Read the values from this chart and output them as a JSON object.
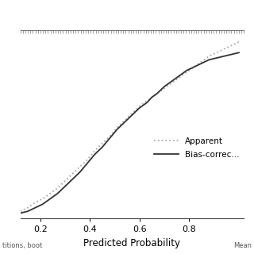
{
  "xlabel": "Predicted Probability",
  "xlim": [
    0.12,
    1.02
  ],
  "ylim": [
    -0.02,
    1.02
  ],
  "xticks": [
    0.2,
    0.4,
    0.6,
    0.8
  ],
  "legend_labels": [
    "Apparent",
    "Bias-correc…"
  ],
  "apparent_color": "#aaaaaa",
  "bias_color": "#333333",
  "bg_color": "#ffffff",
  "footnote_left": "titions, boot",
  "footnote_right": "Mean",
  "apparent_x": [
    0.12,
    0.15,
    0.18,
    0.21,
    0.24,
    0.27,
    0.3,
    0.33,
    0.36,
    0.39,
    0.42,
    0.45,
    0.48,
    0.51,
    0.54,
    0.57,
    0.6,
    0.63,
    0.65,
    0.67,
    0.7,
    0.73,
    0.76,
    0.79,
    0.82,
    0.85,
    0.88,
    0.91,
    0.94,
    0.97,
    1.0
  ],
  "apparent_y": [
    0.02,
    0.04,
    0.07,
    0.09,
    0.12,
    0.15,
    0.19,
    0.23,
    0.27,
    0.31,
    0.36,
    0.4,
    0.44,
    0.49,
    0.53,
    0.57,
    0.61,
    0.64,
    0.66,
    0.68,
    0.71,
    0.74,
    0.77,
    0.8,
    0.83,
    0.86,
    0.89,
    0.91,
    0.93,
    0.95,
    0.97
  ],
  "bias_x": [
    0.12,
    0.15,
    0.18,
    0.21,
    0.24,
    0.27,
    0.3,
    0.33,
    0.36,
    0.39,
    0.42,
    0.45,
    0.48,
    0.51,
    0.54,
    0.57,
    0.6,
    0.63,
    0.65,
    0.67,
    0.7,
    0.73,
    0.76,
    0.79,
    0.82,
    0.85,
    0.88,
    0.91,
    0.94,
    0.97,
    1.0
  ],
  "bias_y": [
    0.01,
    0.02,
    0.04,
    0.06,
    0.09,
    0.12,
    0.16,
    0.2,
    0.24,
    0.29,
    0.34,
    0.38,
    0.43,
    0.48,
    0.52,
    0.56,
    0.6,
    0.63,
    0.66,
    0.68,
    0.72,
    0.75,
    0.78,
    0.81,
    0.83,
    0.85,
    0.87,
    0.88,
    0.89,
    0.9,
    0.91
  ],
  "n_ruler_ticks": 90
}
